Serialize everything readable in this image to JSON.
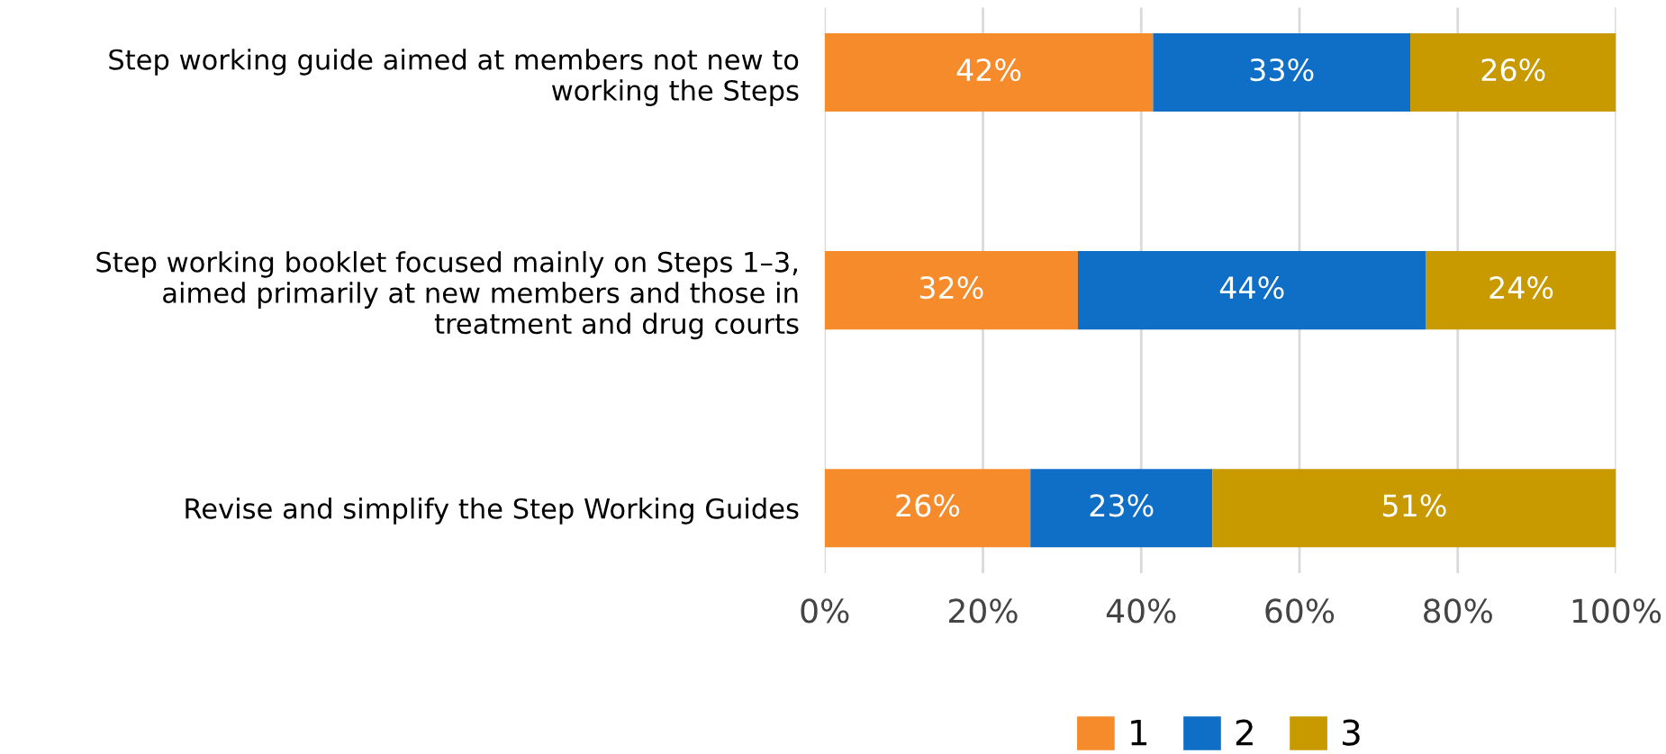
{
  "chart_data": {
    "type": "bar",
    "orientation": "horizontal",
    "stacked": true,
    "categories": [
      "Step working guide aimed at members not new to\nworking the Steps",
      "Step working booklet focused mainly on Steps 1–3,\naimed primarily at new members and those in\ntreatment and drug courts",
      "Revise and simplify the Step Working Guides"
    ],
    "series": [
      {
        "name": "1",
        "color": "#f68b2b",
        "values": [
          41.5,
          32,
          26
        ],
        "value_labels": [
          "42%",
          "32%",
          "26%"
        ]
      },
      {
        "name": "2",
        "color": "#0f6fc6",
        "values": [
          32.5,
          44,
          23
        ],
        "value_labels": [
          "33%",
          "44%",
          "23%"
        ]
      },
      {
        "name": "3",
        "color": "#c99a00",
        "values": [
          26,
          24,
          51
        ],
        "value_labels": [
          "26%",
          "24%",
          "51%"
        ]
      }
    ],
    "xlim": [
      0,
      100
    ],
    "xticks": [
      {
        "value": 0,
        "label": "0%"
      },
      {
        "value": 20,
        "label": "20%"
      },
      {
        "value": 40,
        "label": "40%"
      },
      {
        "value": 60,
        "label": "60%"
      },
      {
        "value": 80,
        "label": "80%"
      },
      {
        "value": 100,
        "label": "100%"
      }
    ],
    "grid": "x",
    "legend": "bottom"
  }
}
